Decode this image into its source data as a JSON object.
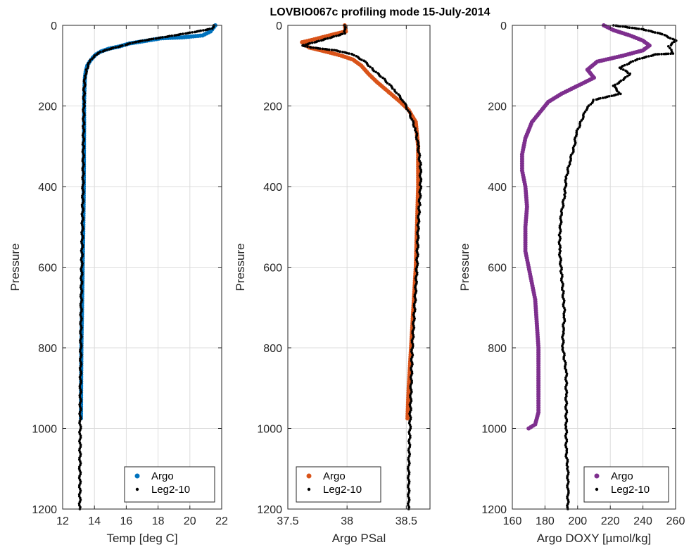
{
  "title": "LOVBIO067c profiling mode 15-July-2014",
  "chart_data": [
    {
      "type": "scatter",
      "xlabel": "Temp [deg C]",
      "ylabel": "Pressure",
      "xlim": [
        12,
        22
      ],
      "ylim": [
        0,
        1200
      ],
      "y_reversed": true,
      "xticks": [
        12,
        14,
        16,
        18,
        20,
        22
      ],
      "yticks": [
        0,
        200,
        400,
        600,
        800,
        1000,
        1200
      ],
      "grid": true,
      "legend": "bottom-right",
      "series": [
        {
          "name": "Argo",
          "color": "#0072BD",
          "marker": "dot-large",
          "points": [
            [
              21.6,
              0
            ],
            [
              21.5,
              5
            ],
            [
              21.3,
              15
            ],
            [
              20.8,
              25
            ],
            [
              19.5,
              30
            ],
            [
              18.2,
              32
            ],
            [
              17.3,
              38
            ],
            [
              16.2,
              45
            ],
            [
              15.6,
              52
            ],
            [
              14.9,
              58
            ],
            [
              14.4,
              65
            ],
            [
              14.1,
              72
            ],
            [
              13.9,
              80
            ],
            [
              13.7,
              90
            ],
            [
              13.55,
              100
            ],
            [
              13.45,
              115
            ],
            [
              13.4,
              130
            ],
            [
              13.38,
              150
            ],
            [
              13.36,
              175
            ],
            [
              13.35,
              200
            ],
            [
              13.35,
              240
            ],
            [
              13.34,
              300
            ],
            [
              13.33,
              400
            ],
            [
              13.3,
              500
            ],
            [
              13.26,
              600
            ],
            [
              13.22,
              700
            ],
            [
              13.18,
              800
            ],
            [
              13.16,
              900
            ],
            [
              13.15,
              975
            ]
          ]
        },
        {
          "name": "Leg2-10",
          "color": "#000000",
          "marker": "dot-small",
          "points": [
            [
              21.5,
              0
            ],
            [
              21.4,
              8
            ],
            [
              20.5,
              15
            ],
            [
              19.0,
              25
            ],
            [
              17.5,
              35
            ],
            [
              16.5,
              42
            ],
            [
              15.8,
              50
            ],
            [
              15.0,
              58
            ],
            [
              14.4,
              66
            ],
            [
              14.0,
              75
            ],
            [
              13.7,
              90
            ],
            [
              13.5,
              110
            ],
            [
              13.4,
              130
            ],
            [
              13.35,
              160
            ],
            [
              13.33,
              200
            ],
            [
              13.32,
              250
            ],
            [
              13.3,
              300
            ],
            [
              13.28,
              400
            ],
            [
              13.24,
              500
            ],
            [
              13.2,
              600
            ],
            [
              13.16,
              700
            ],
            [
              13.14,
              800
            ],
            [
              13.12,
              900
            ],
            [
              13.1,
              1000
            ],
            [
              13.09,
              1100
            ],
            [
              13.08,
              1200
            ]
          ]
        }
      ]
    },
    {
      "type": "scatter",
      "xlabel": "Argo PSal",
      "ylabel": "Pressure",
      "xlim": [
        37.5,
        38.7
      ],
      "ylim": [
        0,
        1200
      ],
      "y_reversed": true,
      "xticks": [
        37.5,
        38,
        38.5
      ],
      "yticks": [
        0,
        200,
        400,
        600,
        800,
        1000,
        1200
      ],
      "grid": true,
      "legend": "bottom-left",
      "series": [
        {
          "name": "Argo",
          "color": "#D95319",
          "marker": "dot-large",
          "points": [
            [
              37.98,
              0
            ],
            [
              37.99,
              15
            ],
            [
              37.85,
              25
            ],
            [
              37.72,
              35
            ],
            [
              37.62,
              42
            ],
            [
              37.68,
              55
            ],
            [
              37.82,
              65
            ],
            [
              37.95,
              75
            ],
            [
              38.05,
              85
            ],
            [
              38.12,
              100
            ],
            [
              38.18,
              120
            ],
            [
              38.25,
              140
            ],
            [
              38.35,
              165
            ],
            [
              38.45,
              190
            ],
            [
              38.52,
              210
            ],
            [
              38.58,
              240
            ],
            [
              38.6,
              300
            ],
            [
              38.6,
              400
            ],
            [
              38.59,
              500
            ],
            [
              38.58,
              600
            ],
            [
              38.56,
              700
            ],
            [
              38.54,
              800
            ],
            [
              38.52,
              900
            ],
            [
              38.51,
              975
            ]
          ]
        },
        {
          "name": "Leg2-10",
          "color": "#000000",
          "marker": "dot-small",
          "points": [
            [
              37.98,
              0
            ],
            [
              37.98,
              20
            ],
            [
              37.75,
              40
            ],
            [
              37.62,
              50
            ],
            [
              37.7,
              55
            ],
            [
              37.9,
              62
            ],
            [
              38.05,
              72
            ],
            [
              38.15,
              90
            ],
            [
              38.22,
              110
            ],
            [
              38.3,
              130
            ],
            [
              38.4,
              160
            ],
            [
              38.48,
              190
            ],
            [
              38.53,
              220
            ],
            [
              38.58,
              260
            ],
            [
              38.6,
              300
            ],
            [
              38.62,
              350
            ],
            [
              38.62,
              400
            ],
            [
              38.61,
              450
            ],
            [
              38.6,
              500
            ],
            [
              38.59,
              600
            ],
            [
              38.57,
              700
            ],
            [
              38.55,
              800
            ],
            [
              38.54,
              900
            ],
            [
              38.53,
              1000
            ],
            [
              38.52,
              1100
            ],
            [
              38.52,
              1200
            ]
          ]
        }
      ]
    },
    {
      "type": "scatter",
      "xlabel": "Argo DOXY [µmol/kg]",
      "ylabel": "Pressure",
      "xlim": [
        160,
        260
      ],
      "ylim": [
        0,
        1200
      ],
      "y_reversed": true,
      "xticks": [
        160,
        180,
        200,
        220,
        240,
        260
      ],
      "yticks": [
        0,
        200,
        400,
        600,
        800,
        1000,
        1200
      ],
      "grid": true,
      "legend": "bottom-right",
      "series": [
        {
          "name": "Argo",
          "color": "#7E2F8E",
          "marker": "dot-large",
          "points": [
            [
              216,
              0
            ],
            [
              222,
              12
            ],
            [
              232,
              25
            ],
            [
              240,
              38
            ],
            [
              244,
              50
            ],
            [
              240,
              62
            ],
            [
              228,
              75
            ],
            [
              212,
              90
            ],
            [
              206,
              110
            ],
            [
              210,
              130
            ],
            [
              200,
              150
            ],
            [
              190,
              170
            ],
            [
              182,
              190
            ],
            [
              178,
              210
            ],
            [
              172,
              240
            ],
            [
              168,
              280
            ],
            [
              166,
              320
            ],
            [
              166,
              360
            ],
            [
              168,
              400
            ],
            [
              169,
              450
            ],
            [
              168,
              500
            ],
            [
              168,
              560
            ],
            [
              170,
              600
            ],
            [
              172,
              640
            ],
            [
              174,
              680
            ],
            [
              175,
              740
            ],
            [
              176,
              800
            ],
            [
              176,
              860
            ],
            [
              176,
              920
            ],
            [
              176,
              960
            ],
            [
              174,
              990
            ],
            [
              170,
              1000
            ]
          ]
        },
        {
          "name": "Leg2-10",
          "color": "#000000",
          "marker": "dot-small",
          "points": [
            [
              222,
              0
            ],
            [
              240,
              10
            ],
            [
              252,
              22
            ],
            [
              260,
              38
            ],
            [
              256,
              52
            ],
            [
              258,
              70
            ],
            [
              248,
              72
            ],
            [
              236,
              85
            ],
            [
              226,
              105
            ],
            [
              232,
              120
            ],
            [
              228,
              135
            ],
            [
              222,
              150
            ],
            [
              226,
              170
            ],
            [
              210,
              185
            ],
            [
              205,
              210
            ],
            [
              202,
              240
            ],
            [
              199,
              270
            ],
            [
              198,
              300
            ],
            [
              195,
              340
            ],
            [
              193,
              380
            ],
            [
              192,
              420
            ],
            [
              190,
              470
            ],
            [
              189,
              520
            ],
            [
              189,
              560
            ],
            [
              190,
              610
            ],
            [
              191,
              660
            ],
            [
              192,
              720
            ],
            [
              191,
              760
            ],
            [
              191,
              800
            ],
            [
              193,
              860
            ],
            [
              193,
              920
            ],
            [
              193,
              1000
            ],
            [
              193,
              1060
            ],
            [
              194,
              1100
            ],
            [
              194,
              1160
            ],
            [
              194,
              1200
            ]
          ]
        }
      ]
    }
  ]
}
